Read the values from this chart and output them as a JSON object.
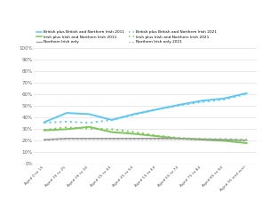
{
  "age_labels": [
    "Aged 0 to 15",
    "Aged 16 to 25",
    "Aged 26 to 34",
    "Aged 35 to 44",
    "Aged 45 to 54",
    "Aged 55 to 64",
    "Aged 65 to 74",
    "Aged 75 to 84",
    "Aged 85 to 94",
    "Aged 95 and over"
  ],
  "british_2011": [
    36.0,
    44.0,
    43.0,
    38.0,
    43.0,
    47.0,
    51.0,
    54.5,
    56.5,
    61.0
  ],
  "british_2021": [
    35.5,
    36.5,
    35.5,
    38.0,
    42.5,
    47.0,
    50.5,
    53.5,
    55.5,
    60.5
  ],
  "irish_2011": [
    29.0,
    30.0,
    32.0,
    27.5,
    26.0,
    24.0,
    22.0,
    21.0,
    20.0,
    18.0
  ],
  "irish_2021": [
    29.5,
    31.5,
    30.5,
    30.0,
    27.5,
    24.5,
    22.5,
    21.5,
    21.5,
    21.0
  ],
  "northern_irish_2011": [
    21.0,
    22.0,
    22.0,
    22.0,
    22.0,
    22.0,
    22.0,
    21.5,
    21.0,
    20.5
  ],
  "northern_irish_2021": [
    20.5,
    21.5,
    21.5,
    21.5,
    21.5,
    21.5,
    21.5,
    21.0,
    20.5,
    20.0
  ],
  "color_british": "#5bc8f5",
  "color_irish": "#7dc85b",
  "color_northern_irish": "#999999",
  "ylim": [
    0,
    100
  ],
  "yticks": [
    0,
    10,
    20,
    30,
    40,
    50,
    60,
    70,
    80,
    90,
    100
  ],
  "ytick_labels": [
    "0%",
    "10%",
    "20%",
    "30%",
    "40%",
    "50%",
    "60%",
    "70%",
    "80%",
    "90%",
    "100%"
  ],
  "background_color": "#ffffff",
  "grid_color": "#e0e0e0",
  "legend_labels_solid": [
    "British plus British and Northern Irish 2011",
    "Irish plus Irish and Northern Irish 2011",
    "Northern Irish only"
  ],
  "legend_labels_dotted": [
    "British plus British and Northern Irish 2021",
    "Irish plus Irish and Northern Irish 2021",
    "Northern Irish only 2021"
  ]
}
